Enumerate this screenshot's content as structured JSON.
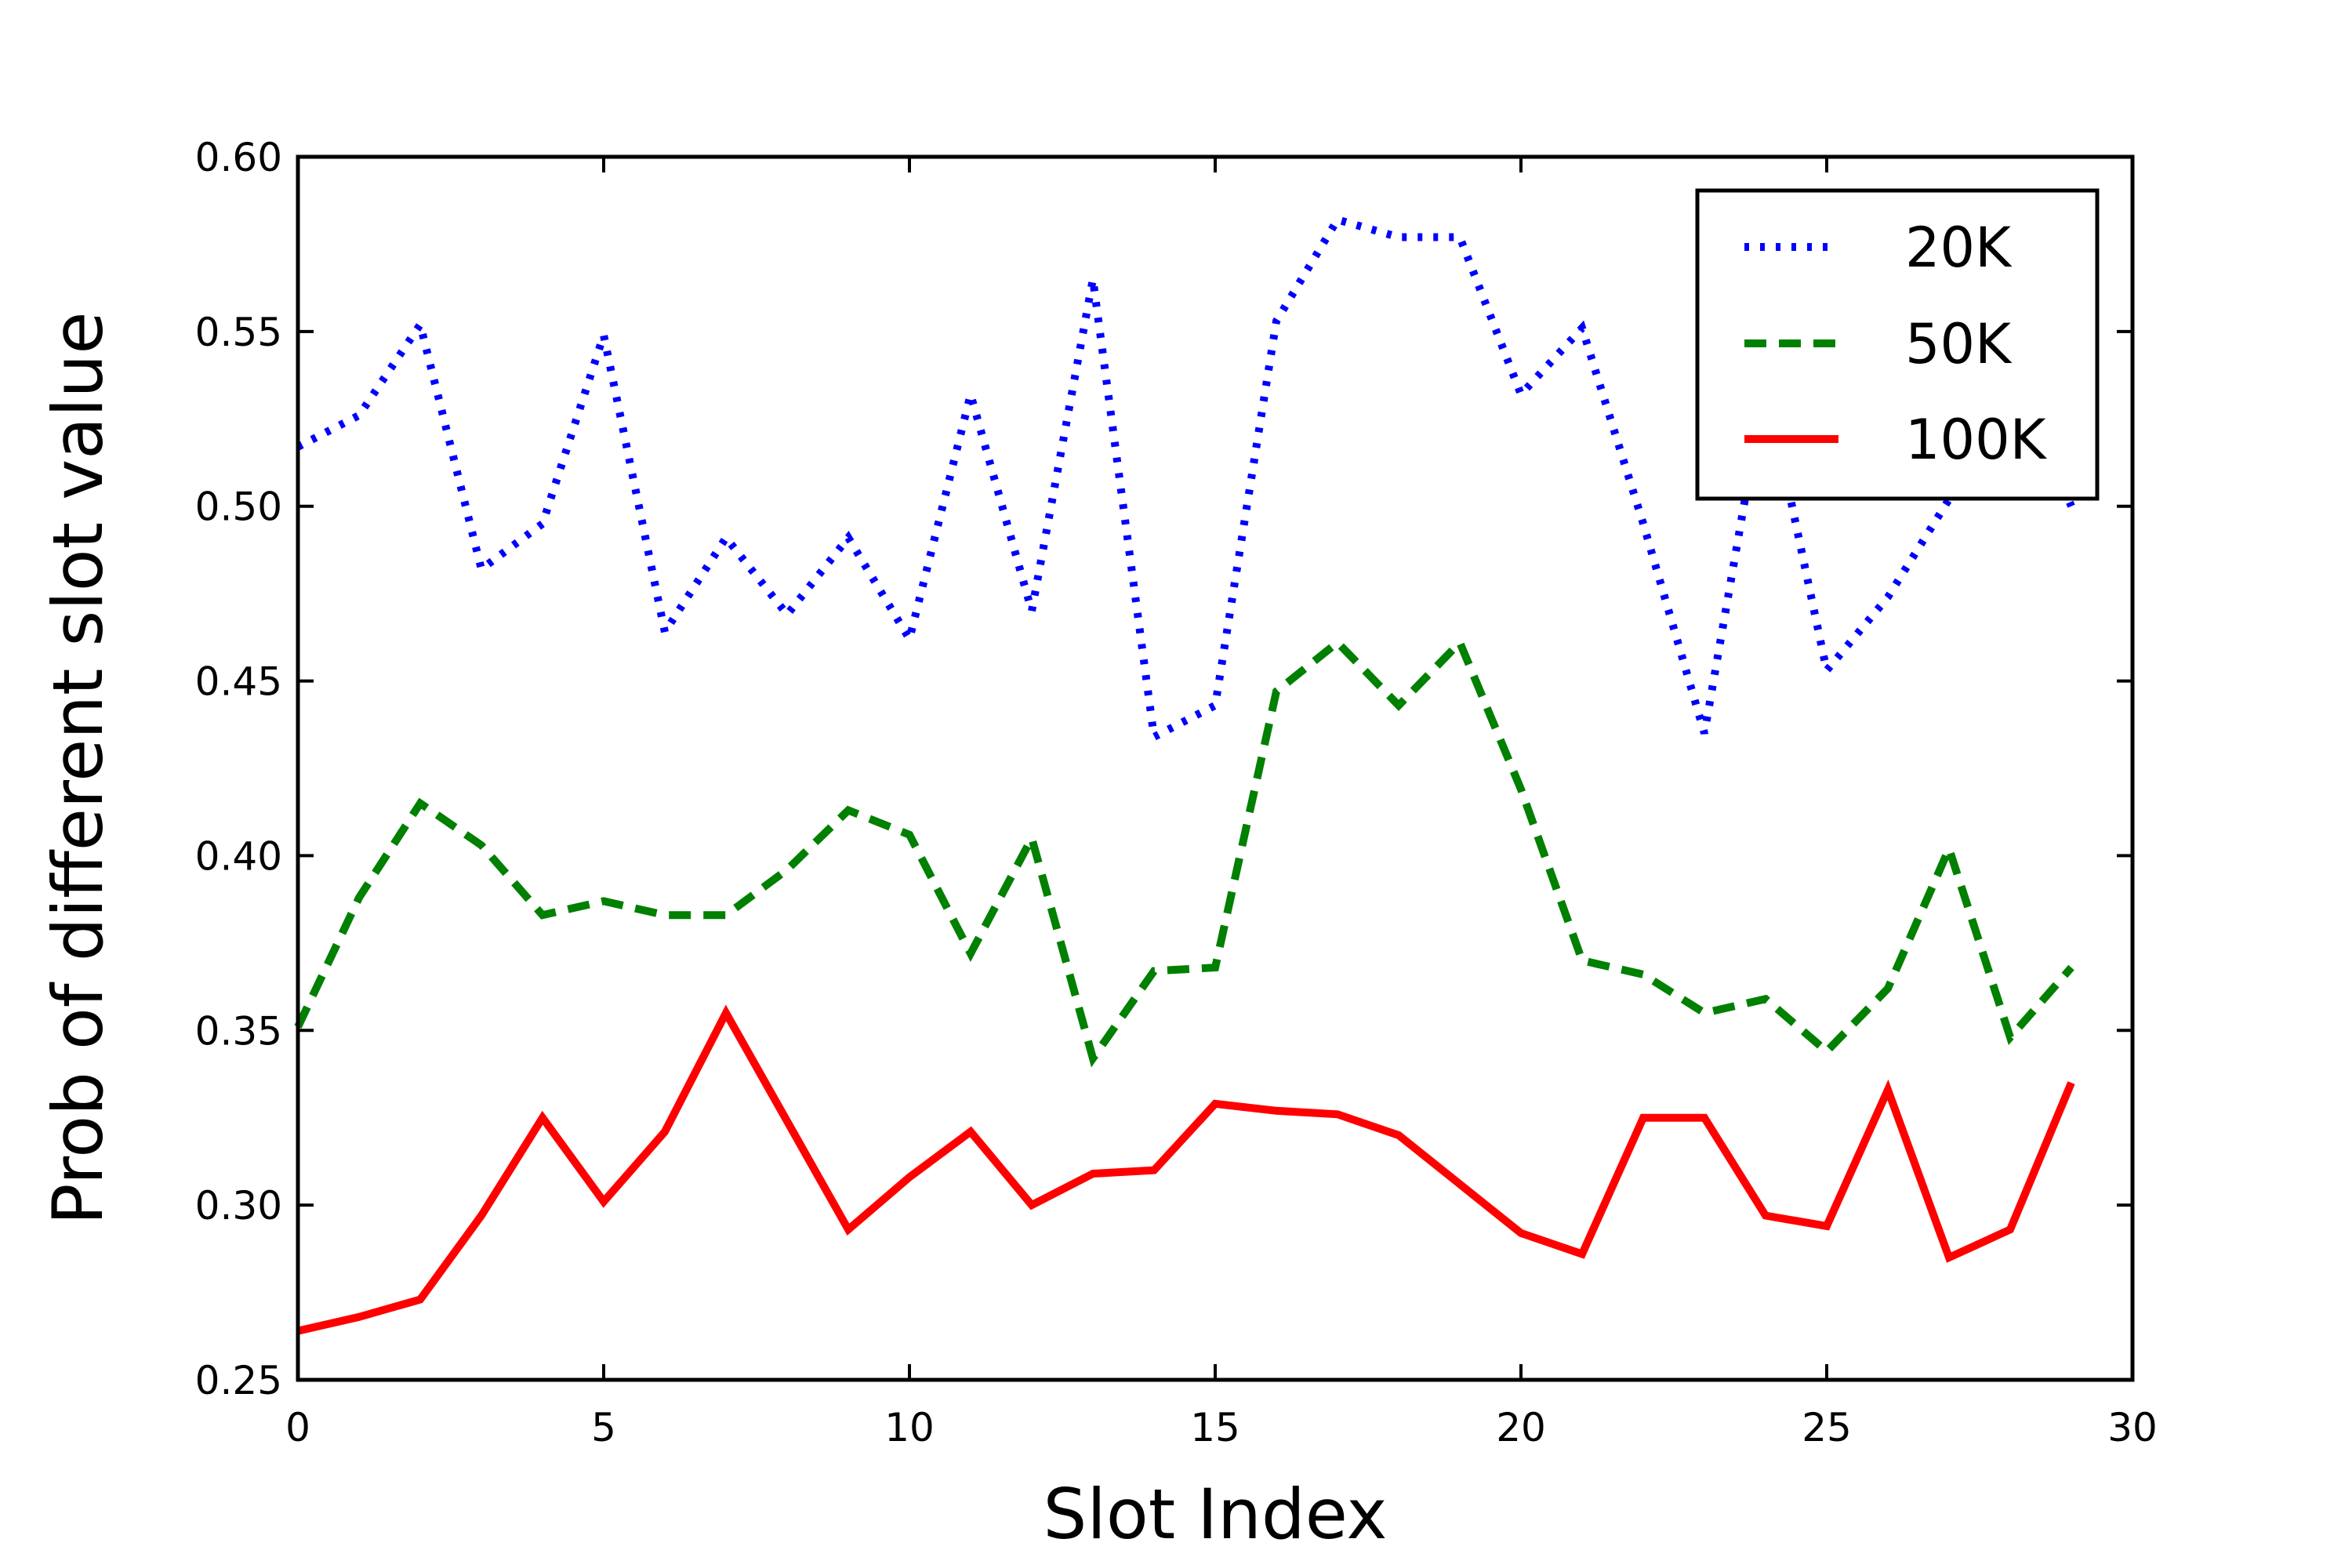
{
  "chart_data": {
    "type": "line",
    "xlabel": "Slot Index",
    "ylabel": "Prob of different slot value",
    "xlim": [
      0,
      30
    ],
    "ylim": [
      0.25,
      0.6
    ],
    "xticks": [
      "0",
      "5",
      "10",
      "15",
      "20",
      "25",
      "30"
    ],
    "yticks": [
      "0.25",
      "0.30",
      "0.35",
      "0.40",
      "0.45",
      "0.50",
      "0.55",
      "0.60"
    ],
    "grid": false,
    "legend_position": "top-right",
    "x": [
      0,
      1,
      2,
      3,
      4,
      5,
      6,
      7,
      8,
      9,
      10,
      11,
      12,
      13,
      14,
      15,
      16,
      17,
      18,
      19,
      20,
      21,
      22,
      23,
      24,
      25,
      26,
      27,
      28,
      29
    ],
    "series": [
      {
        "name": "20K",
        "color": "#0000ff",
        "style": "dotted",
        "values": [
          0.517,
          0.526,
          0.552,
          0.482,
          0.495,
          0.549,
          0.464,
          0.491,
          0.469,
          0.491,
          0.462,
          0.532,
          0.47,
          0.565,
          0.434,
          0.443,
          0.553,
          0.582,
          0.577,
          0.577,
          0.532,
          0.551,
          0.495,
          0.435,
          0.536,
          0.453,
          0.474,
          0.502,
          0.542,
          0.5
        ]
      },
      {
        "name": "50K",
        "color": "#008000",
        "style": "dashed",
        "values": [
          0.351,
          0.388,
          0.415,
          0.403,
          0.383,
          0.387,
          0.383,
          0.383,
          0.396,
          0.413,
          0.406,
          0.372,
          0.405,
          0.342,
          0.367,
          0.368,
          0.447,
          0.461,
          0.443,
          0.461,
          0.419,
          0.37,
          0.366,
          0.355,
          0.359,
          0.344,
          0.362,
          0.402,
          0.348,
          0.368
        ]
      },
      {
        "name": "100K",
        "color": "#ff0000",
        "style": "solid",
        "values": [
          0.264,
          0.268,
          0.273,
          0.297,
          0.325,
          0.301,
          0.321,
          0.355,
          0.324,
          0.293,
          0.308,
          0.321,
          0.3,
          0.309,
          0.31,
          0.329,
          0.327,
          0.326,
          0.32,
          0.306,
          0.292,
          0.286,
          0.325,
          0.325,
          0.297,
          0.294,
          0.333,
          0.285,
          0.293,
          0.335
        ]
      }
    ]
  }
}
